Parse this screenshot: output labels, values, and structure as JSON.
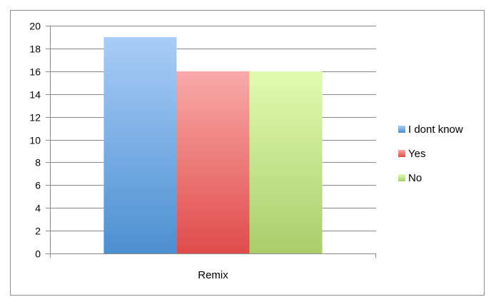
{
  "chart_data": {
    "type": "bar",
    "title": "",
    "xlabel": "",
    "ylabel": "",
    "categories": [
      "Remix"
    ],
    "series": [
      {
        "name": "I dont know",
        "values": [
          19
        ]
      },
      {
        "name": "Yes",
        "values": [
          16
        ]
      },
      {
        "name": "No",
        "values": [
          16
        ]
      }
    ],
    "ylim": [
      0,
      20
    ],
    "yticks": [
      0,
      2,
      4,
      6,
      8,
      10,
      12,
      14,
      16,
      18,
      20
    ],
    "grid": true,
    "legend_position": "right",
    "colors": {
      "I dont know": {
        "top": "#a9cdf7",
        "bottom": "#4c8fd1"
      },
      "Yes": {
        "top": "#f9aaa9",
        "bottom": "#df4c4a"
      },
      "No": {
        "top": "#e0fbb0",
        "bottom": "#a9ce6a"
      }
    }
  }
}
